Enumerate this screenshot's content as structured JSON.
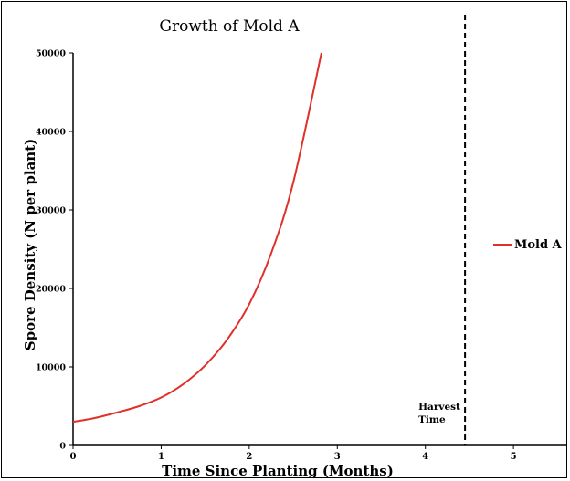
{
  "chart_data": {
    "type": "line",
    "title": "Growth of Mold A",
    "xlabel": "Time Since Planting (Months)",
    "ylabel": "Spore Density (N per plant)",
    "xlim": [
      0,
      5.6
    ],
    "ylim": [
      0,
      50000
    ],
    "x_ticks": [
      0,
      1,
      2,
      3,
      4,
      5
    ],
    "y_ticks": [
      0,
      10000,
      20000,
      30000,
      40000,
      50000
    ],
    "grid": false,
    "legend_position": "right",
    "series": [
      {
        "name": "Mold A",
        "color": "#e0302a",
        "x": [
          0,
          0.25,
          0.5,
          0.75,
          1.0,
          1.25,
          1.5,
          1.75,
          2.0,
          2.25,
          2.5,
          2.82
        ],
        "y": [
          3000,
          3500,
          4200,
          5000,
          6100,
          7800,
          10200,
          13500,
          18000,
          24500,
          33500,
          50000
        ]
      }
    ],
    "annotations": [
      {
        "type": "vline",
        "x": 4.45,
        "style": "dashed",
        "label": [
          "Harvest",
          "Time"
        ]
      }
    ]
  }
}
